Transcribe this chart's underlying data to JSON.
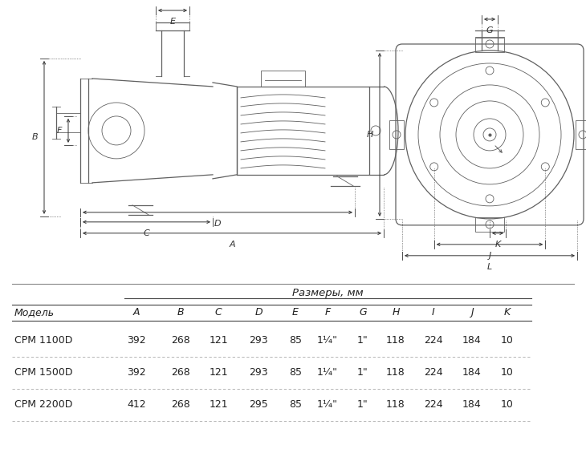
{
  "bg_color": "#ffffff",
  "table_header_top": "Размеры, мм",
  "table_col_header": [
    "Модель",
    "A",
    "B",
    "C",
    "D",
    "E",
    "F",
    "G",
    "H",
    "I",
    "J",
    "K"
  ],
  "table_rows": [
    [
      "CPM 1100D",
      "392",
      "268",
      "121",
      "293",
      "85",
      "1¼\"",
      "1\"",
      "118",
      "224",
      "184",
      "10"
    ],
    [
      "CPM 1500D",
      "392",
      "268",
      "121",
      "293",
      "85",
      "1¼\"",
      "1\"",
      "118",
      "224",
      "184",
      "10"
    ],
    [
      "CPM 2200D",
      "412",
      "268",
      "121",
      "295",
      "85",
      "1¼\"",
      "1\"",
      "118",
      "224",
      "184",
      "10"
    ]
  ],
  "fig_width": 7.3,
  "fig_height": 5.6,
  "dpi": 100
}
